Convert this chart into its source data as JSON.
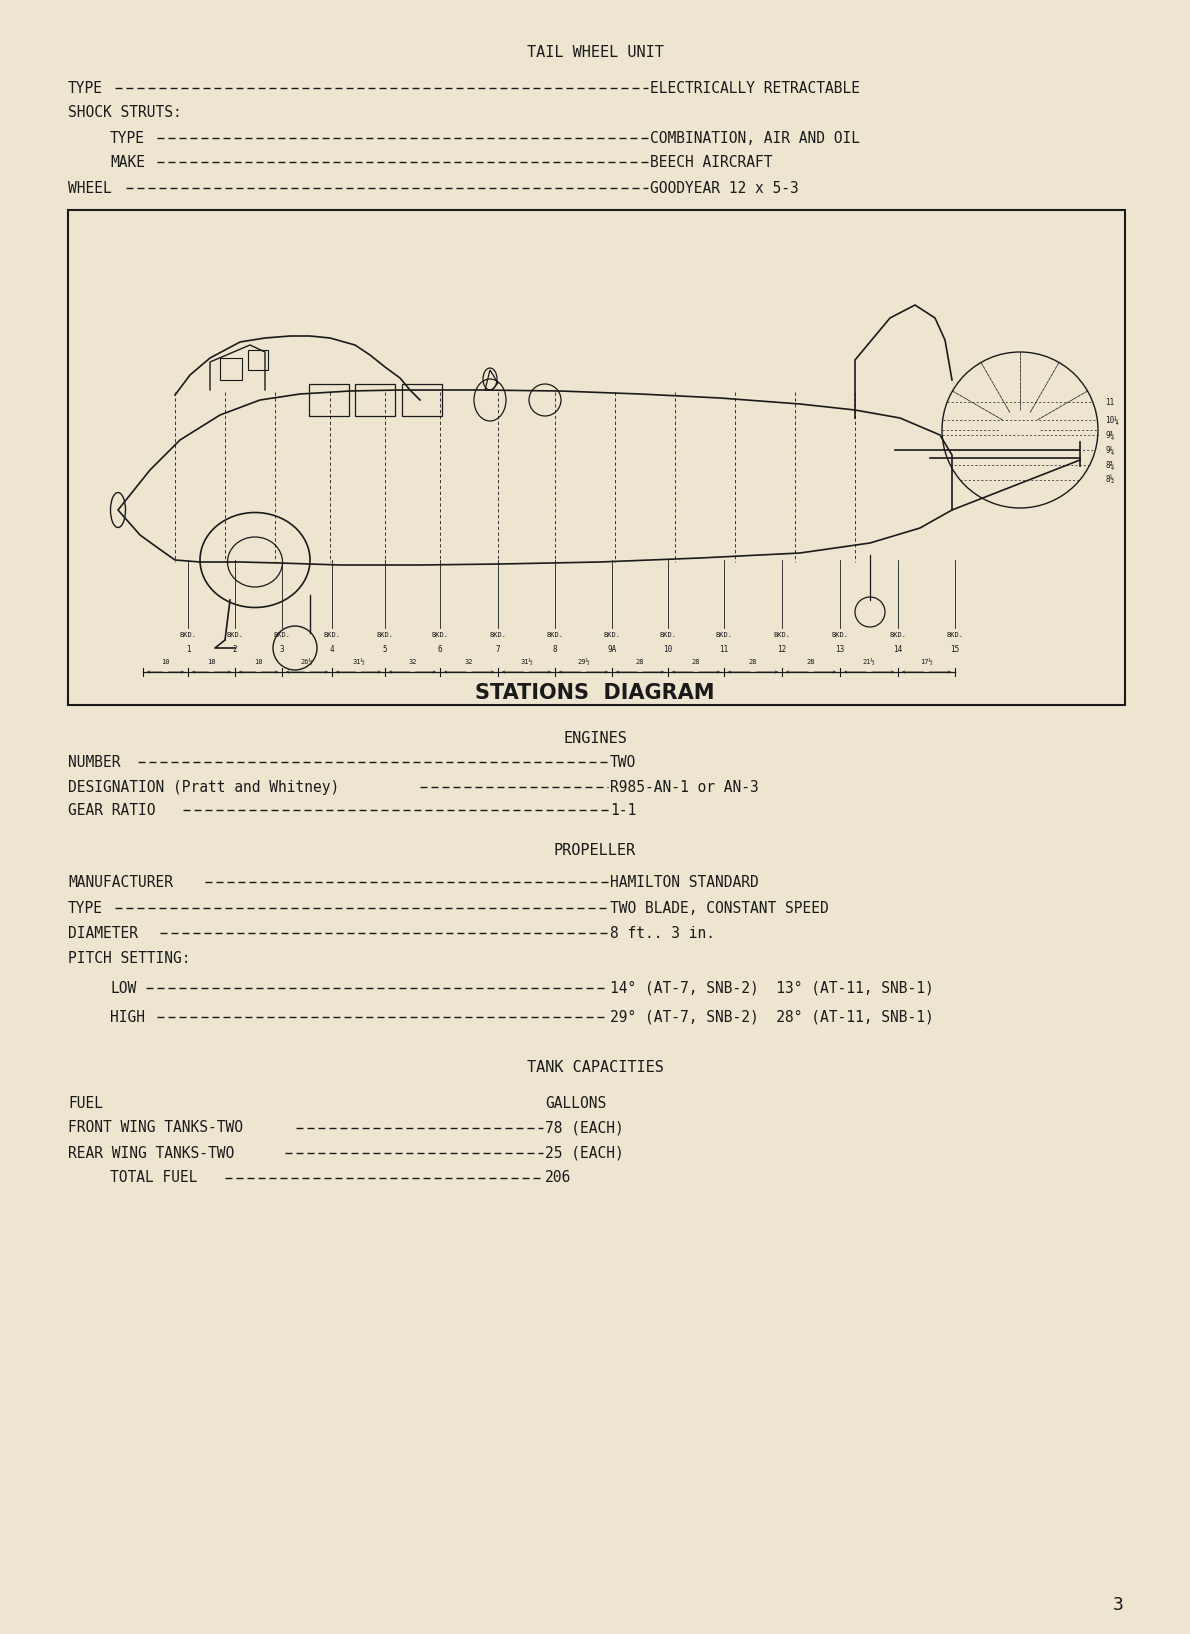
{
  "bg_color": "#ede5d0",
  "text_color": "#1a1a1a",
  "page_number": "3",
  "title1": "TAIL WHEEL UNIT",
  "title2": "ENGINES",
  "title3": "PROPELLER",
  "title4": "TANK CAPACITIES",
  "diagram_title": "STATIONS  DIAGRAM"
}
